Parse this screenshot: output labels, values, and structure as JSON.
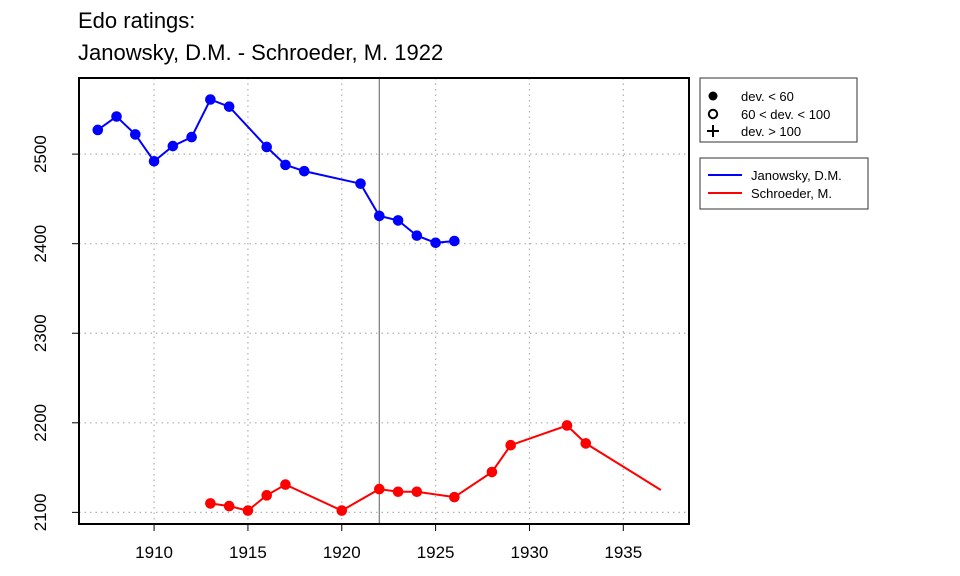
{
  "title_line1": "Edo ratings:",
  "title_line2": "Janowsky, D.M. - Schroeder, M. 1922",
  "chart_data": {
    "type": "line",
    "title": "Edo ratings:\nJanowsky, D.M. - Schroeder, M. 1922",
    "xlabel": "",
    "ylabel": "",
    "xlim": [
      1906,
      1938.5
    ],
    "ylim": [
      2087,
      2585
    ],
    "xticks": [
      1910,
      1915,
      1920,
      1925,
      1930,
      1935
    ],
    "yticks": [
      2100,
      2200,
      2300,
      2400,
      2500
    ],
    "grid": true,
    "vline_x": 1922,
    "series": [
      {
        "name": "Janowsky, D.M.",
        "color": "#0000ff",
        "x": [
          1907,
          1908,
          1909,
          1910,
          1911,
          1912,
          1913,
          1914,
          1916,
          1917,
          1918,
          1921,
          1922,
          1923,
          1924,
          1925,
          1926
        ],
        "y": [
          2527,
          2542,
          2522,
          2492,
          2509,
          2519,
          2561,
          2553,
          2508,
          2488,
          2481,
          2467,
          2431,
          2426,
          2409,
          2401,
          2403
        ],
        "points_until": 1926
      },
      {
        "name": "Schroeder, M.",
        "color": "#ff0000",
        "x": [
          1913,
          1914,
          1915,
          1916,
          1917,
          1920,
          1922,
          1923,
          1924,
          1926,
          1928,
          1929,
          1932,
          1933,
          1937
        ],
        "y": [
          2110,
          2107,
          2102,
          2119,
          2131,
          2102,
          2126,
          2123,
          2123,
          2117,
          2145,
          2175,
          2197,
          2177,
          2125
        ],
        "points_until": 1933
      }
    ],
    "legend_markers": {
      "position": "top-right",
      "entries": [
        {
          "symbol": "filled-circle",
          "label": "dev. < 60"
        },
        {
          "symbol": "open-circle",
          "label": "60 < dev. < 100"
        },
        {
          "symbol": "plus",
          "label": "dev. > 100"
        }
      ]
    },
    "legend_series": {
      "position": "right",
      "entries": [
        {
          "label": "Janowsky, D.M.",
          "color": "#0000ff"
        },
        {
          "label": "Schroeder, M.",
          "color": "#ff0000"
        }
      ]
    }
  }
}
